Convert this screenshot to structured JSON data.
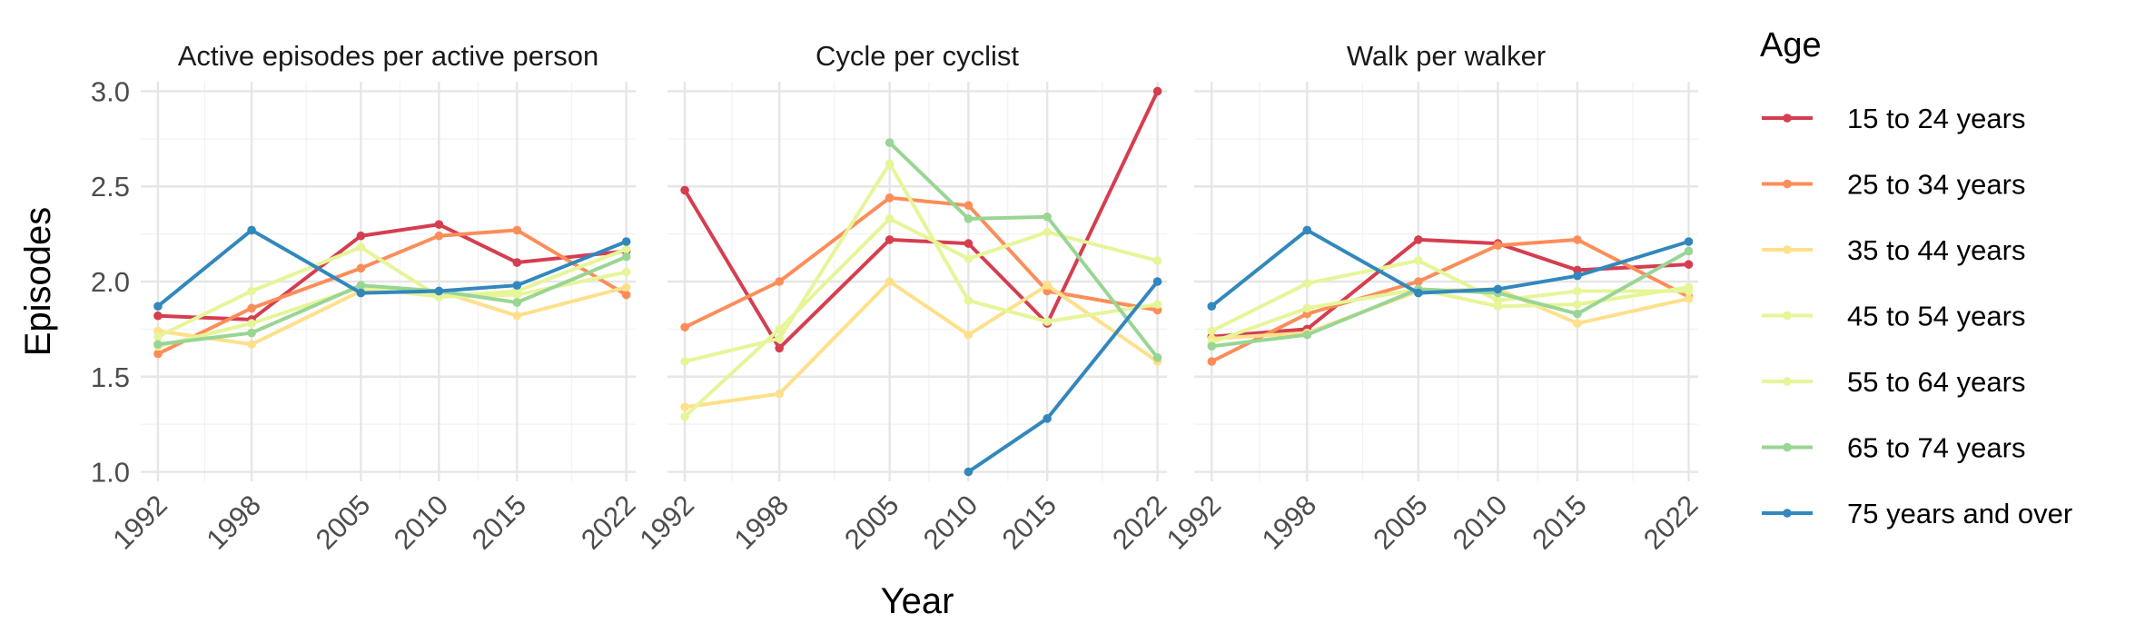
{
  "chart_data": {
    "type": "line",
    "xlabel": "Year",
    "ylabel": "Episodes",
    "ylim": [
      0.95,
      3.05
    ],
    "yticks": [
      1.0,
      1.5,
      2.0,
      2.5,
      3.0
    ],
    "ytick_labels": [
      "1.0",
      "1.5",
      "2.0",
      "2.5",
      "3.0"
    ],
    "xticks": [
      1992,
      1998,
      2005,
      2010,
      2015,
      2022
    ],
    "xtick_labels": [
      "1992",
      "1998",
      "2005",
      "2010",
      "2015",
      "2022"
    ],
    "grid": true,
    "legend": {
      "title": "Age",
      "position": "right",
      "entries": [
        "15 to 24 years",
        "25 to 34 years",
        "35 to 44 years",
        "45 to 54 years",
        "55 to 64 years",
        "65 to 74 years",
        "75 years and over"
      ]
    },
    "series_colors": [
      "#d53e4f",
      "#fc8d59",
      "#fee08b",
      "#e6f598",
      "#e6f598",
      "#99d594",
      "#3288bd"
    ],
    "panels": [
      {
        "title": "Active episodes per active person",
        "x": [
          1992,
          1998,
          2005,
          2010,
          2015,
          2022
        ],
        "series": [
          {
            "name": "15 to 24 years",
            "values": [
              1.82,
              1.8,
              2.24,
              2.3,
              2.1,
              2.16
            ]
          },
          {
            "name": "25 to 34 years",
            "values": [
              1.62,
              1.86,
              2.07,
              2.24,
              2.27,
              1.93
            ]
          },
          {
            "name": "35 to 44 years",
            "values": [
              1.74,
              1.67,
              1.95,
              1.95,
              1.82,
              1.97
            ]
          },
          {
            "name": "45 to 54 years",
            "values": [
              1.66,
              1.78,
              1.97,
              1.92,
              1.93,
              2.05
            ]
          },
          {
            "name": "55 to 64 years",
            "values": [
              1.71,
              1.95,
              2.18,
              1.92,
              1.95,
              2.17
            ]
          },
          {
            "name": "65 to 74 years",
            "values": [
              1.67,
              1.73,
              1.98,
              1.95,
              1.89,
              2.13
            ]
          },
          {
            "name": "75 years and over",
            "values": [
              1.87,
              2.27,
              1.94,
              1.95,
              1.98,
              2.21
            ]
          }
        ]
      },
      {
        "title": "Cycle per cyclist",
        "x": [
          1992,
          1998,
          2005,
          2010,
          2015,
          2022
        ],
        "series": [
          {
            "name": "15 to 24 years",
            "values": [
              2.48,
              1.65,
              2.22,
              2.2,
              1.78,
              3.0
            ]
          },
          {
            "name": "25 to 34 years",
            "values": [
              1.76,
              2.0,
              2.44,
              2.4,
              1.95,
              1.85
            ]
          },
          {
            "name": "35 to 44 years",
            "values": [
              1.34,
              1.41,
              2.0,
              1.72,
              1.98,
              1.58
            ]
          },
          {
            "name": "45 to 54 years",
            "values": [
              1.29,
              1.75,
              2.33,
              2.12,
              2.26,
              2.11
            ]
          },
          {
            "name": "55 to 64 years",
            "values": [
              1.58,
              1.7,
              2.62,
              1.9,
              1.79,
              1.88
            ]
          },
          {
            "name": "65 to 74 years",
            "values": [
              null,
              null,
              2.73,
              2.33,
              2.34,
              1.6
            ]
          },
          {
            "name": "75 years and over",
            "values": [
              null,
              null,
              null,
              1.0,
              1.28,
              2.0
            ]
          }
        ]
      },
      {
        "title": "Walk per walker",
        "x": [
          1992,
          1998,
          2005,
          2010,
          2015,
          2022
        ],
        "series": [
          {
            "name": "15 to 24 years",
            "values": [
              1.71,
              1.75,
              2.22,
              2.2,
              2.06,
              2.09
            ]
          },
          {
            "name": "25 to 34 years",
            "values": [
              1.58,
              1.83,
              2.0,
              2.19,
              2.22,
              1.92
            ]
          },
          {
            "name": "35 to 44 years",
            "values": [
              1.7,
              1.73,
              1.95,
              1.96,
              1.78,
              1.91
            ]
          },
          {
            "name": "45 to 54 years",
            "values": [
              1.68,
              1.86,
              1.96,
              1.87,
              1.88,
              1.97
            ]
          },
          {
            "name": "55 to 64 years",
            "values": [
              1.74,
              1.99,
              2.11,
              1.9,
              1.95,
              1.95
            ]
          },
          {
            "name": "65 to 74 years",
            "values": [
              1.66,
              1.72,
              1.96,
              1.94,
              1.83,
              2.16
            ]
          },
          {
            "name": "75 years and over",
            "values": [
              1.87,
              2.27,
              1.94,
              1.96,
              2.03,
              2.21
            ]
          }
        ]
      }
    ]
  }
}
